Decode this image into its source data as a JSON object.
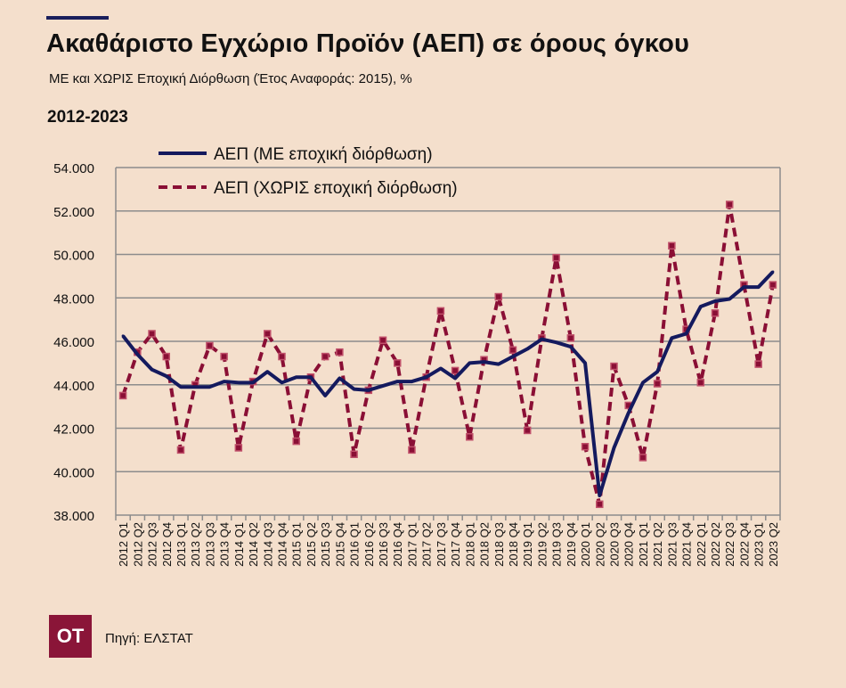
{
  "header": {
    "title": "Ακαθάριστο Εγχώριο Προϊόν (ΑΕΠ) σε όρους όγκου",
    "subtitle": "ΜΕ και ΧΩΡΙΣ Εποχική Διόρθωση  (Έτος Αναφοράς: 2015), %",
    "period": "2012-2023"
  },
  "footer": {
    "logo_text": "ΟΤ",
    "source": "Πηγή: ΕΛΣΤΑΤ"
  },
  "colors": {
    "sa": "#141a5e",
    "nsa": "#8a0f35",
    "marker": "#c0506a",
    "grid": "#8c8c8c"
  },
  "chart_data": {
    "type": "line",
    "title": "Ακαθάριστο Εγχώριο Προϊόν (ΑΕΠ) σε όρους όγκου",
    "ylim": [
      38000,
      54000
    ],
    "yticks": [
      "38.000",
      "40.000",
      "42.000",
      "44.000",
      "46.000",
      "48.000",
      "50.000",
      "52.000",
      "54.000"
    ],
    "ytick_values": [
      38000,
      40000,
      42000,
      44000,
      46000,
      48000,
      50000,
      52000,
      54000
    ],
    "grid": true,
    "legend": "top-left",
    "categories": [
      "2012 Q1",
      "2012 Q2",
      "2012 Q3",
      "2012 Q4",
      "2013 Q1",
      "2013 Q2",
      "2013 Q3",
      "2013 Q4",
      "2014 Q1",
      "2014 Q2",
      "2014 Q3",
      "2014 Q4",
      "2015 Q1",
      "2015 Q2",
      "2015 Q3",
      "2015 Q4",
      "2016 Q1",
      "2016 Q2",
      "2016 Q3",
      "2016 Q4",
      "2017 Q1",
      "2017 Q2",
      "2017 Q3",
      "2017 Q4",
      "2018 Q1",
      "2018 Q2",
      "2018 Q3",
      "2018 Q4",
      "2019 Q1",
      "2019 Q2",
      "2019 Q3",
      "2019 Q4",
      "2020 Q1",
      "2020 Q2",
      "2020 Q3",
      "2020 Q4",
      "2021 Q1",
      "2021 Q2",
      "2021 Q3",
      "2021 Q4",
      "2022 Q1",
      "2022 Q2",
      "2022 Q3",
      "2022 Q4",
      "2023 Q1",
      "2023 Q2"
    ],
    "series": [
      {
        "name": "ΑΕΠ  (ΜΕ εποχική διόρθωση)",
        "style": "solid",
        "values": [
          46250,
          45400,
          44700,
          44400,
          43900,
          43900,
          43900,
          44150,
          44100,
          44100,
          44600,
          44100,
          44350,
          44350,
          43500,
          44300,
          43800,
          43750,
          43950,
          44150,
          44150,
          44350,
          44750,
          44300,
          45000,
          45050,
          44950,
          45300,
          45650,
          46100,
          45950,
          45750,
          45000,
          38900,
          41100,
          42700,
          44100,
          44600,
          46150,
          46350,
          47600,
          47850,
          47950,
          48500,
          48500,
          49200
        ]
      },
      {
        "name": "ΑΕΠ  (ΧΩΡΙΣ εποχική διόρθωση)",
        "style": "dashed",
        "values": [
          43500,
          45500,
          46350,
          45300,
          41000,
          44000,
          45800,
          45300,
          41100,
          44150,
          46350,
          45300,
          41400,
          44350,
          45300,
          45500,
          40800,
          43750,
          46050,
          45000,
          41000,
          44350,
          47400,
          44650,
          41600,
          45150,
          48050,
          45600,
          41900,
          46150,
          49850,
          46150,
          41150,
          38500,
          44850,
          43050,
          40650,
          44050,
          50400,
          46550,
          44100,
          47300,
          52300,
          48600,
          44950,
          48600
        ]
      }
    ]
  }
}
